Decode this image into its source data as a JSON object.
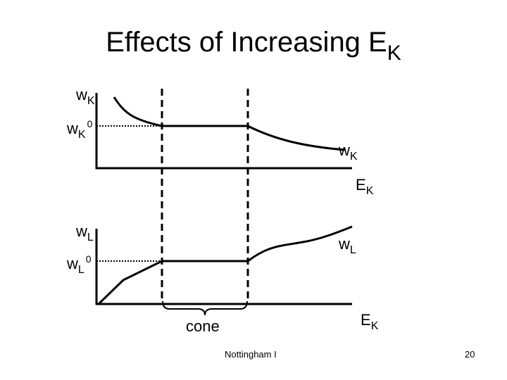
{
  "slide": {
    "title_main": "Effects of Increasing E",
    "title_sub": "K",
    "top_panel": {
      "y_axis_label": "w",
      "y_axis_sub": "K",
      "y0_label": "w",
      "y0_sub": "K",
      "y0_sup": "0",
      "curve_label": "w",
      "curve_sub": "K",
      "x_axis_label": "E",
      "x_axis_sub": "K"
    },
    "bottom_panel": {
      "y_axis_label": "w",
      "y_axis_sub": "L",
      "y0_label": "w",
      "y0_sub": "L",
      "y0_sup": "0",
      "curve_label": "w",
      "curve_sub": "L",
      "x_axis_label": "E",
      "x_axis_sub": "K"
    },
    "cone_label": "cone",
    "footer_text": "Nottingham I",
    "page_number": "20"
  },
  "colors": {
    "ink": "#000000",
    "background": "#ffffff"
  }
}
